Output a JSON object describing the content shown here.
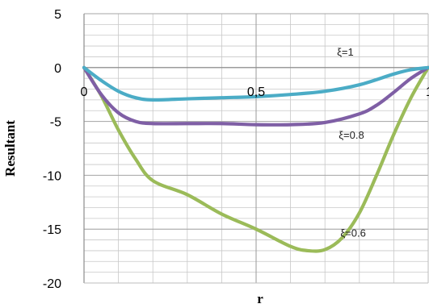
{
  "chart_data": {
    "type": "line",
    "xlabel": "r",
    "ylabel": "Resultant",
    "xlim": [
      0,
      1
    ],
    "ylim": [
      -20,
      5
    ],
    "x_ticks": [
      "0",
      "0,5",
      "1"
    ],
    "y_ticks": [
      "5",
      "0",
      "-5",
      "-10",
      "-15",
      "-20"
    ],
    "grid": true,
    "series": [
      {
        "name": "ξ=1",
        "color": "#4bacc6",
        "x": [
          0,
          0.05,
          0.1,
          0.15,
          0.2,
          0.3,
          0.4,
          0.5,
          0.6,
          0.7,
          0.8,
          0.9,
          0.95,
          1
        ],
        "y": [
          0,
          -1.2,
          -2.2,
          -2.8,
          -3.0,
          -2.9,
          -2.8,
          -2.7,
          -2.5,
          -2.2,
          -1.6,
          -0.6,
          -0.2,
          0
        ]
      },
      {
        "name": "ξ=0.8",
        "color": "#7f5fa5",
        "x": [
          0,
          0.05,
          0.1,
          0.15,
          0.2,
          0.3,
          0.4,
          0.5,
          0.6,
          0.7,
          0.8,
          0.85,
          0.9,
          0.95,
          1
        ],
        "y": [
          0,
          -2.5,
          -4.2,
          -5.0,
          -5.2,
          -5.2,
          -5.2,
          -5.3,
          -5.3,
          -5.1,
          -4.3,
          -3.5,
          -2.3,
          -1.0,
          0
        ]
      },
      {
        "name": "ξ=0.6",
        "color": "#9bbb59",
        "x": [
          0,
          0.05,
          0.1,
          0.15,
          0.2,
          0.3,
          0.4,
          0.5,
          0.6,
          0.65,
          0.7,
          0.75,
          0.8,
          0.85,
          0.9,
          0.95,
          1
        ],
        "y": [
          0,
          -2.6,
          -5.8,
          -8.5,
          -10.5,
          -11.8,
          -13.6,
          -15.0,
          -16.6,
          -17.0,
          -16.9,
          -15.8,
          -13.5,
          -10.0,
          -6.2,
          -2.8,
          0
        ]
      }
    ],
    "annotations": [
      {
        "text": "ξ=1",
        "series": "ξ=1"
      },
      {
        "text": "ξ=0.8",
        "series": "ξ=0.8"
      },
      {
        "text": "ξ=0.6",
        "series": "ξ=0.6"
      }
    ]
  }
}
